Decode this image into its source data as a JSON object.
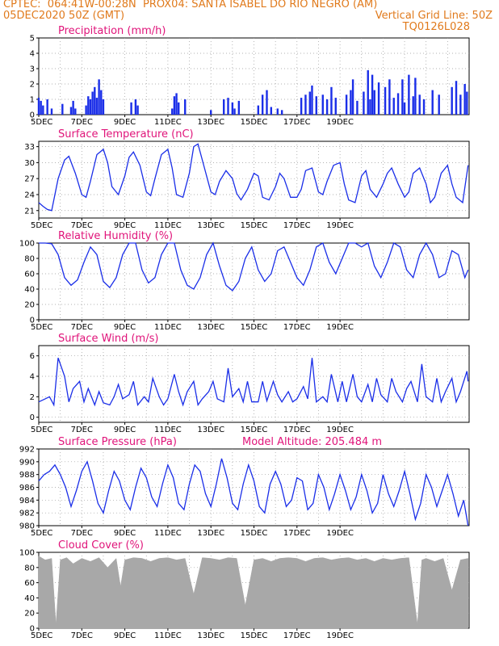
{
  "header": {
    "line1": "CPTEC:  064:41W-00:28N  PROX04: SANTA ISABEL DO RIO NEGRO (AM)",
    "line2": "05DEC2020 50Z (GMT)",
    "grid_note": "Vertical Grid Line: 50Z",
    "code": "TQ0126L028"
  },
  "model_altitude": "Model Altitude: 205.484 m",
  "colors": {
    "header": "#e07a1c",
    "title": "#e0147a",
    "series": "#1a2ee8",
    "bars": "#1a2ee8",
    "cloud": "#a8a8a8"
  },
  "chart_data": [
    {
      "id": "precip",
      "type": "bar",
      "title": "Precipitation (mm/h)",
      "ylim": [
        0,
        5
      ],
      "yticks": [
        0,
        1,
        2,
        3,
        4,
        5
      ],
      "x_tick_labels": [
        "5DEC",
        "7DEC",
        "9DEC",
        "11DEC",
        "13DEC",
        "15DEC",
        "17DEC",
        "19DEC"
      ],
      "grid": true,
      "x_days": [
        0.0,
        0.1,
        0.2,
        0.4,
        0.6,
        1.1,
        1.5,
        1.6,
        1.7,
        2.2,
        2.3,
        2.4,
        2.5,
        2.6,
        2.7,
        2.8,
        2.9,
        3.0,
        4.3,
        4.5,
        4.6,
        6.2,
        6.3,
        6.4,
        6.5,
        6.8,
        8.0,
        8.6,
        8.8,
        9.0,
        9.1,
        9.3,
        10.2,
        10.4,
        10.6,
        10.8,
        11.1,
        11.3,
        12.2,
        12.4,
        12.6,
        12.7,
        12.9,
        13.2,
        13.4,
        13.6,
        13.8,
        14.3,
        14.5,
        14.6,
        14.8,
        15.1,
        15.3,
        15.4,
        15.5,
        15.6,
        15.8,
        16.1,
        16.3,
        16.5,
        16.7,
        16.9,
        17.0,
        17.2,
        17.4,
        17.5,
        17.7,
        17.9,
        18.3,
        18.6,
        19.2,
        19.4,
        19.6,
        19.8,
        19.9
      ],
      "values": [
        1.1,
        0.9,
        0.6,
        1.0,
        0.4,
        0.7,
        0.5,
        0.9,
        0.4,
        0.6,
        1.2,
        1.0,
        1.5,
        1.8,
        1.1,
        2.3,
        1.6,
        1.0,
        0.8,
        1.0,
        0.6,
        0.4,
        1.2,
        1.4,
        0.8,
        1.0,
        0.3,
        1.0,
        1.1,
        0.8,
        0.4,
        0.9,
        0.6,
        1.3,
        1.6,
        0.5,
        0.4,
        0.3,
        1.1,
        1.3,
        1.5,
        1.9,
        1.2,
        1.3,
        1.0,
        1.8,
        1.1,
        1.3,
        1.6,
        2.3,
        0.9,
        1.5,
        2.9,
        1.0,
        2.6,
        1.6,
        2.1,
        1.8,
        2.3,
        1.1,
        1.4,
        2.3,
        0.8,
        2.6,
        1.2,
        2.4,
        1.3,
        1.0,
        1.6,
        1.3,
        1.8,
        2.2,
        1.3,
        2.0,
        1.5
      ]
    },
    {
      "id": "temp",
      "type": "line",
      "title": "Surface Temperature (nC)",
      "ylim": [
        19.6,
        34
      ],
      "yticks": [
        21,
        24,
        27,
        30,
        33
      ],
      "x_tick_labels": [
        "5DEC",
        "7DEC",
        "9DEC",
        "11DEC",
        "13DEC",
        "15DEC",
        "17DEC",
        "19DEC"
      ],
      "grid": true,
      "x_days": [
        0.0,
        0.2,
        0.4,
        0.6,
        0.9,
        1.2,
        1.4,
        1.7,
        2.0,
        2.2,
        2.4,
        2.7,
        3.0,
        3.2,
        3.4,
        3.7,
        4.0,
        4.2,
        4.4,
        4.7,
        5.0,
        5.2,
        5.4,
        5.7,
        6.0,
        6.2,
        6.4,
        6.7,
        7.0,
        7.2,
        7.4,
        7.7,
        8.0,
        8.2,
        8.4,
        8.7,
        9.0,
        9.2,
        9.4,
        9.7,
        10.0,
        10.2,
        10.4,
        10.7,
        11.0,
        11.2,
        11.4,
        11.7,
        12.0,
        12.2,
        12.4,
        12.7,
        13.0,
        13.2,
        13.4,
        13.7,
        14.0,
        14.2,
        14.4,
        14.7,
        15.0,
        15.2,
        15.4,
        15.7,
        16.0,
        16.2,
        16.4,
        16.7,
        17.0,
        17.2,
        17.4,
        17.7,
        18.0,
        18.2,
        18.4,
        18.7,
        19.0,
        19.2,
        19.4,
        19.7,
        19.95
      ],
      "values": [
        22.5,
        21.8,
        21.2,
        21.0,
        27.0,
        30.5,
        31.2,
        28.0,
        24.0,
        23.5,
        26.5,
        31.5,
        32.5,
        30.0,
        25.5,
        24.0,
        27.5,
        31.0,
        32.0,
        29.5,
        24.5,
        23.8,
        27.0,
        31.5,
        32.5,
        29.0,
        24.0,
        23.5,
        28.0,
        33.0,
        33.5,
        29.0,
        24.5,
        24.0,
        26.5,
        28.5,
        27.0,
        24.2,
        23.0,
        25.0,
        28.0,
        27.5,
        23.5,
        23.0,
        25.5,
        28.0,
        27.0,
        23.5,
        23.5,
        25.0,
        28.5,
        29.0,
        24.5,
        24.0,
        26.5,
        29.5,
        30.0,
        26.0,
        23.0,
        22.5,
        27.5,
        28.5,
        25.0,
        23.5,
        26.0,
        28.0,
        29.0,
        26.0,
        23.5,
        24.5,
        28.0,
        29.0,
        26.0,
        22.5,
        23.5,
        28.0,
        29.5,
        26.0,
        23.5,
        22.5,
        29.5
      ]
    },
    {
      "id": "rh",
      "type": "line",
      "title": "Relative Humidity (%)",
      "ylim": [
        0,
        100
      ],
      "yticks": [
        0,
        20,
        40,
        60,
        80,
        100
      ],
      "x_tick_labels": [
        "5DEC",
        "7DEC",
        "9DEC",
        "11DEC",
        "13DEC",
        "15DEC",
        "17DEC",
        "19DEC"
      ],
      "grid": true,
      "x_days": [
        0.0,
        0.3,
        0.6,
        0.9,
        1.2,
        1.5,
        1.8,
        2.1,
        2.4,
        2.7,
        3.0,
        3.3,
        3.6,
        3.9,
        4.2,
        4.5,
        4.8,
        5.1,
        5.4,
        5.7,
        6.0,
        6.3,
        6.6,
        6.9,
        7.2,
        7.5,
        7.8,
        8.1,
        8.4,
        8.7,
        9.0,
        9.3,
        9.6,
        9.9,
        10.2,
        10.5,
        10.8,
        11.1,
        11.4,
        11.7,
        12.0,
        12.3,
        12.6,
        12.9,
        13.2,
        13.5,
        13.8,
        14.1,
        14.4,
        14.7,
        15.0,
        15.3,
        15.6,
        15.9,
        16.2,
        16.5,
        16.8,
        17.1,
        17.4,
        17.7,
        18.0,
        18.3,
        18.6,
        18.9,
        19.2,
        19.5,
        19.8,
        19.95
      ],
      "values": [
        100,
        100,
        99,
        85,
        55,
        45,
        52,
        75,
        95,
        85,
        50,
        42,
        55,
        85,
        100,
        100,
        65,
        48,
        55,
        85,
        100,
        100,
        65,
        45,
        40,
        55,
        85,
        100,
        70,
        45,
        38,
        50,
        80,
        95,
        65,
        50,
        60,
        90,
        95,
        75,
        55,
        45,
        65,
        95,
        100,
        75,
        60,
        80,
        100,
        100,
        95,
        100,
        70,
        55,
        75,
        100,
        95,
        65,
        55,
        85,
        100,
        85,
        55,
        60,
        90,
        85,
        55,
        65
      ]
    },
    {
      "id": "wind",
      "type": "line",
      "title": "Surface Wind (m/s)",
      "ylim": [
        -0.5,
        7
      ],
      "yticks": [
        0,
        2,
        4,
        6
      ],
      "x_tick_labels": [
        "5DEC",
        "7DEC",
        "9DEC",
        "11DEC",
        "13DEC",
        "15DEC",
        "17DEC",
        "19DEC"
      ],
      "grid": true,
      "x_days": [
        0.0,
        0.3,
        0.5,
        0.7,
        0.9,
        1.2,
        1.4,
        1.6,
        1.9,
        2.1,
        2.3,
        2.6,
        2.8,
        3.0,
        3.3,
        3.5,
        3.7,
        3.9,
        4.2,
        4.4,
        4.6,
        4.9,
        5.1,
        5.3,
        5.6,
        5.8,
        6.0,
        6.3,
        6.5,
        6.7,
        6.9,
        7.2,
        7.4,
        7.6,
        7.9,
        8.1,
        8.3,
        8.6,
        8.8,
        9.0,
        9.3,
        9.5,
        9.7,
        9.9,
        10.2,
        10.4,
        10.6,
        10.9,
        11.1,
        11.3,
        11.6,
        11.8,
        12.0,
        12.3,
        12.5,
        12.7,
        12.9,
        13.2,
        13.4,
        13.6,
        13.9,
        14.1,
        14.3,
        14.6,
        14.8,
        15.0,
        15.3,
        15.5,
        15.7,
        15.9,
        16.2,
        16.4,
        16.6,
        16.9,
        17.1,
        17.3,
        17.6,
        17.8,
        18.0,
        18.3,
        18.5,
        18.7,
        18.9,
        19.2,
        19.4,
        19.6,
        19.9,
        19.95
      ],
      "values": [
        1.5,
        1.8,
        2.0,
        1.2,
        5.8,
        4.0,
        1.5,
        2.8,
        3.5,
        1.5,
        2.8,
        1.2,
        2.5,
        1.4,
        1.2,
        2.0,
        3.2,
        1.8,
        2.2,
        3.5,
        1.2,
        2.0,
        1.5,
        3.8,
        2.0,
        1.2,
        1.8,
        4.2,
        2.5,
        1.2,
        2.5,
        3.5,
        1.2,
        1.8,
        2.5,
        3.5,
        1.8,
        1.5,
        4.8,
        2.0,
        2.8,
        1.5,
        3.5,
        1.5,
        1.5,
        3.5,
        1.6,
        3.5,
        2.2,
        1.5,
        2.5,
        1.5,
        1.8,
        3.0,
        1.8,
        5.8,
        1.5,
        2.0,
        1.5,
        4.2,
        1.5,
        3.5,
        1.5,
        4.2,
        2.0,
        1.5,
        3.2,
        1.5,
        3.8,
        2.2,
        1.5,
        3.8,
        2.5,
        1.5,
        2.8,
        3.5,
        1.5,
        5.2,
        2.0,
        1.5,
        3.8,
        1.5,
        2.5,
        3.8,
        1.5,
        2.5,
        4.5,
        3.5
      ]
    },
    {
      "id": "pres",
      "type": "line",
      "title": "Surface Pressure (hPa)",
      "ylim": [
        980,
        992
      ],
      "yticks": [
        980,
        982,
        984,
        986,
        988,
        990,
        992
      ],
      "x_tick_labels": [
        "5DEC",
        "7DEC",
        "9DEC",
        "11DEC",
        "13DEC",
        "15DEC",
        "17DEC",
        "19DEC"
      ],
      "grid": true,
      "x_days": [
        0.0,
        0.25,
        0.5,
        0.75,
        1.0,
        1.25,
        1.5,
        1.75,
        2.0,
        2.25,
        2.5,
        2.75,
        3.0,
        3.25,
        3.5,
        3.75,
        4.0,
        4.25,
        4.5,
        4.75,
        5.0,
        5.25,
        5.5,
        5.75,
        6.0,
        6.25,
        6.5,
        6.75,
        7.0,
        7.25,
        7.5,
        7.75,
        8.0,
        8.25,
        8.5,
        8.75,
        9.0,
        9.25,
        9.5,
        9.75,
        10.0,
        10.25,
        10.5,
        10.75,
        11.0,
        11.25,
        11.5,
        11.75,
        12.0,
        12.25,
        12.5,
        12.75,
        13.0,
        13.25,
        13.5,
        13.75,
        14.0,
        14.25,
        14.5,
        14.75,
        15.0,
        15.25,
        15.5,
        15.75,
        16.0,
        16.25,
        16.5,
        16.75,
        17.0,
        17.25,
        17.5,
        17.75,
        18.0,
        18.25,
        18.5,
        18.75,
        19.0,
        19.25,
        19.5,
        19.75,
        19.95
      ],
      "values": [
        987.0,
        988.0,
        988.5,
        989.5,
        988.0,
        986.0,
        983.0,
        985.5,
        988.5,
        990.0,
        987.0,
        983.5,
        982.0,
        985.5,
        988.5,
        987.0,
        984.0,
        982.5,
        986.0,
        989.0,
        987.5,
        984.5,
        983.0,
        986.5,
        989.5,
        987.5,
        983.5,
        982.5,
        986.5,
        989.5,
        988.5,
        985.0,
        983.0,
        986.5,
        990.5,
        987.5,
        983.5,
        982.5,
        986.5,
        989.5,
        987.0,
        983.0,
        982.0,
        986.5,
        988.5,
        986.5,
        983.0,
        984.0,
        987.5,
        987.0,
        982.5,
        983.5,
        988.0,
        986.0,
        982.5,
        985.0,
        988.0,
        985.5,
        982.5,
        984.5,
        988.0,
        985.5,
        982.0,
        983.5,
        988.0,
        985.0,
        983.0,
        985.5,
        988.5,
        985.0,
        981.0,
        983.5,
        988.0,
        986.0,
        983.0,
        985.5,
        988.0,
        985.0,
        981.5,
        984.0,
        980.0
      ]
    },
    {
      "id": "cloud",
      "type": "area",
      "title": "Cloud Cover (%)",
      "ylim": [
        0,
        100
      ],
      "yticks": [
        0,
        20,
        40,
        60,
        80,
        100
      ],
      "x_tick_labels": [
        "5DEC",
        "7DEC",
        "9DEC",
        "11DEC",
        "13DEC",
        "15DEC",
        "17DEC",
        "19DEC"
      ],
      "grid": true,
      "x_days": [
        0.0,
        0.3,
        0.6,
        0.8,
        1.0,
        1.3,
        1.6,
        2.0,
        2.4,
        2.8,
        3.2,
        3.6,
        3.8,
        4.0,
        4.4,
        4.8,
        5.2,
        5.6,
        6.0,
        6.4,
        6.8,
        7.2,
        7.6,
        8.0,
        8.4,
        8.8,
        9.2,
        9.6,
        10.0,
        10.4,
        10.8,
        11.2,
        11.6,
        12.0,
        12.4,
        12.8,
        13.2,
        13.6,
        14.0,
        14.4,
        14.8,
        15.2,
        15.6,
        16.0,
        16.4,
        16.8,
        17.2,
        17.6,
        17.8,
        18.0,
        18.4,
        18.8,
        19.2,
        19.6,
        19.95
      ],
      "values": [
        95,
        90,
        92,
        5,
        90,
        93,
        85,
        92,
        88,
        93,
        80,
        92,
        55,
        90,
        93,
        92,
        88,
        92,
        93,
        90,
        92,
        45,
        93,
        92,
        90,
        93,
        92,
        30,
        90,
        92,
        88,
        92,
        93,
        92,
        88,
        92,
        93,
        90,
        92,
        93,
        90,
        92,
        88,
        92,
        90,
        92,
        93,
        5,
        90,
        92,
        88,
        92,
        50,
        90,
        92
      ]
    }
  ]
}
